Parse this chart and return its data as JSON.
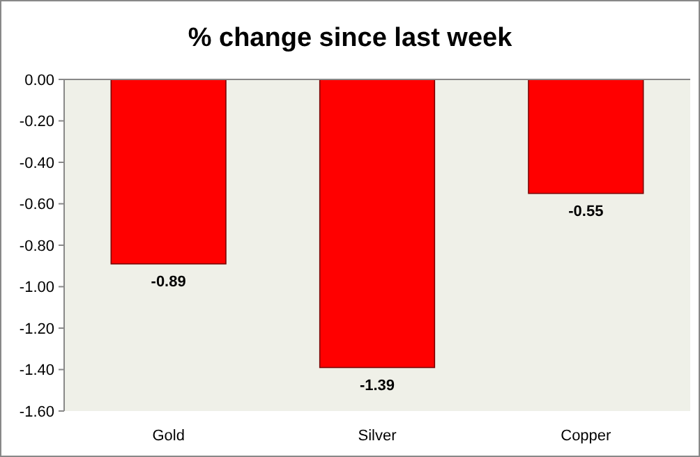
{
  "chart_data": {
    "type": "bar",
    "title": "% change since last week",
    "categories": [
      "Gold",
      "Silver",
      "Copper"
    ],
    "values": [
      -0.89,
      -1.39,
      -0.55
    ],
    "color": "#ff0000",
    "ylim": [
      -1.6,
      0
    ],
    "yticks": [
      {
        "value": 0,
        "label": "0.00"
      },
      {
        "value": -0.2,
        "label": "-0.20"
      },
      {
        "value": -0.4,
        "label": "-0.40"
      },
      {
        "value": -0.6,
        "label": "-0.60"
      },
      {
        "value": -0.8,
        "label": "-0.80"
      },
      {
        "value": -1.0,
        "label": "-1.00"
      },
      {
        "value": -1.2,
        "label": "-1.20"
      },
      {
        "value": -1.4,
        "label": "-1.40"
      },
      {
        "value": -1.6,
        "label": "-1.60"
      }
    ],
    "data_labels": true
  }
}
